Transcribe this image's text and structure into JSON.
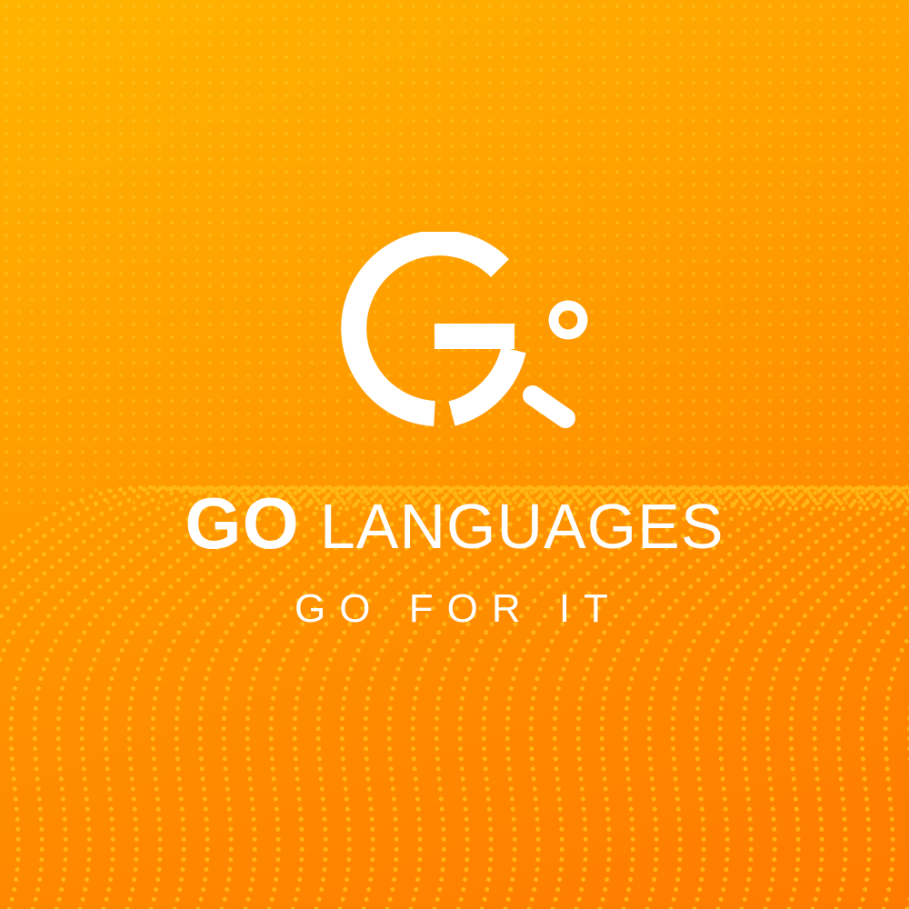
{
  "brand": {
    "name_bold": "GO",
    "name_regular": "LANGUAGES",
    "tagline": "GO FOR IT",
    "logo_icon": "g-magnifier-logo-icon"
  },
  "colors": {
    "background_top": "#ffb400",
    "background_bottom": "#ff7a00",
    "dots": "#ffd23a",
    "logo": "#ffffff",
    "text": "#ffffff"
  }
}
